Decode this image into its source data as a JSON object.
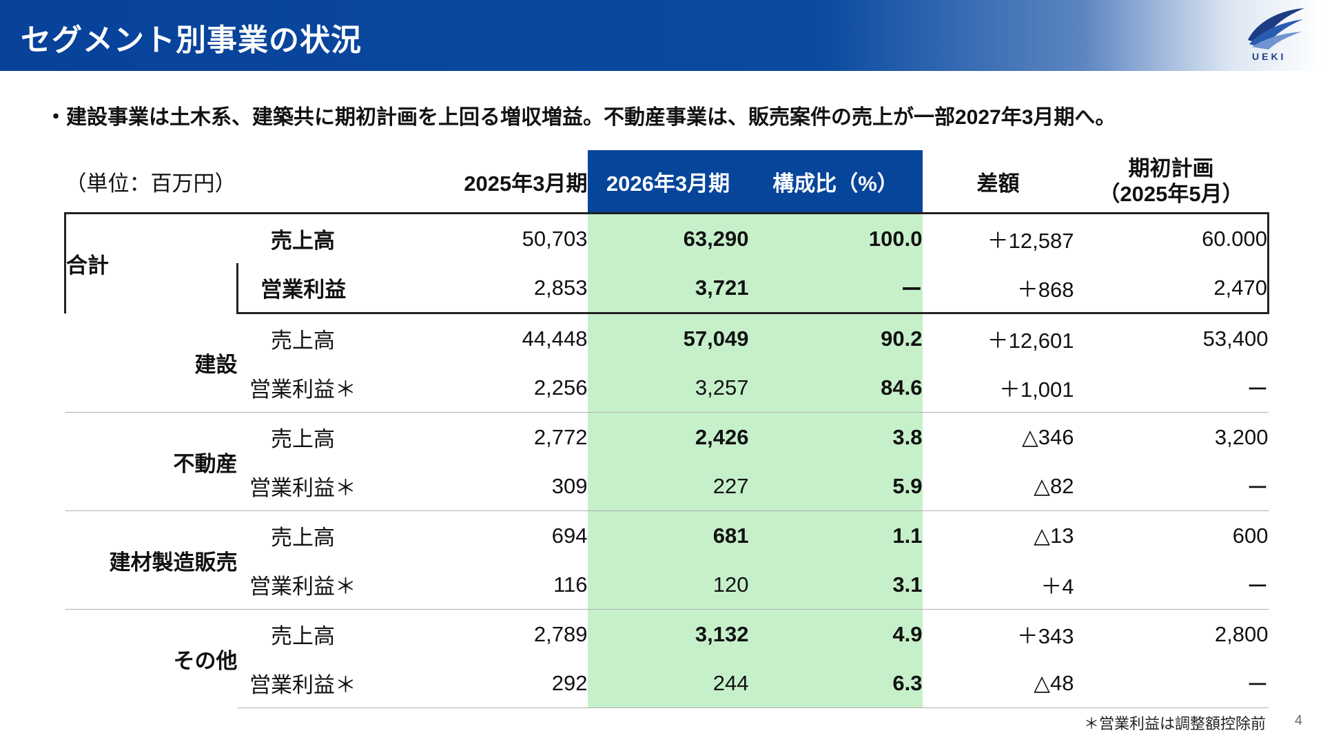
{
  "header": {
    "title": "セグメント別事業の状況",
    "logo_text": "UEKI",
    "bg_color": "#08429a"
  },
  "summary": "・建設事業は土木系、建築共に期初計画を上回る増収増益。不動産事業は、販売案件の売上が一部2027年3月期へ。",
  "table": {
    "unit": "（単位：百万円）",
    "columns": {
      "fy2025": "2025年3月期",
      "fy2026": "2026年3月期",
      "ratio": "構成比（%）",
      "diff": "差額",
      "plan_line1": "期初計画",
      "plan_line2": "（2025年5月）"
    },
    "highlight_color": "#c6f0ca",
    "header_highlight_color": "#07459b",
    "groups": [
      {
        "name": "合計",
        "rows": [
          {
            "label": "売上高",
            "fy2025": "50,703",
            "fy2026": "63,290",
            "ratio": "100.0",
            "diff": "＋12,587",
            "plan": "60.000"
          },
          {
            "label": "営業利益",
            "fy2025": "2,853",
            "fy2026": "3,721",
            "ratio": "ー",
            "diff": "＋868",
            "plan": "2,470"
          }
        ]
      },
      {
        "name": "建設",
        "rows": [
          {
            "label": "売上高",
            "fy2025": "44,448",
            "fy2026": "57,049",
            "ratio": "90.2",
            "diff": "＋12,601",
            "plan": "53,400"
          },
          {
            "label": "営業利益＊",
            "fy2025": "2,256",
            "fy2026": "3,257",
            "ratio": "84.6",
            "diff": "＋1,001",
            "plan": "ー"
          }
        ]
      },
      {
        "name": "不動産",
        "rows": [
          {
            "label": "売上高",
            "fy2025": "2,772",
            "fy2026": "2,426",
            "ratio": "3.8",
            "diff": "△346",
            "plan": "3,200"
          },
          {
            "label": "営業利益＊",
            "fy2025": "309",
            "fy2026": "227",
            "ratio": "5.9",
            "diff": "△82",
            "plan": "ー"
          }
        ]
      },
      {
        "name": "建材製造販売",
        "rows": [
          {
            "label": "売上高",
            "fy2025": "694",
            "fy2026": "681",
            "ratio": "1.1",
            "diff": "△13",
            "plan": "600"
          },
          {
            "label": "営業利益＊",
            "fy2025": "116",
            "fy2026": "120",
            "ratio": "3.1",
            "diff": "＋4",
            "plan": "ー"
          }
        ]
      },
      {
        "name": "その他",
        "rows": [
          {
            "label": "売上高",
            "fy2025": "2,789",
            "fy2026": "3,132",
            "ratio": "4.9",
            "diff": "＋343",
            "plan": "2,800"
          },
          {
            "label": "営業利益＊",
            "fy2025": "292",
            "fy2026": "244",
            "ratio": "6.3",
            "diff": "△48",
            "plan": "ー"
          }
        ]
      }
    ]
  },
  "footnote": "＊営業利益は調整額控除前",
  "page_number": "4"
}
